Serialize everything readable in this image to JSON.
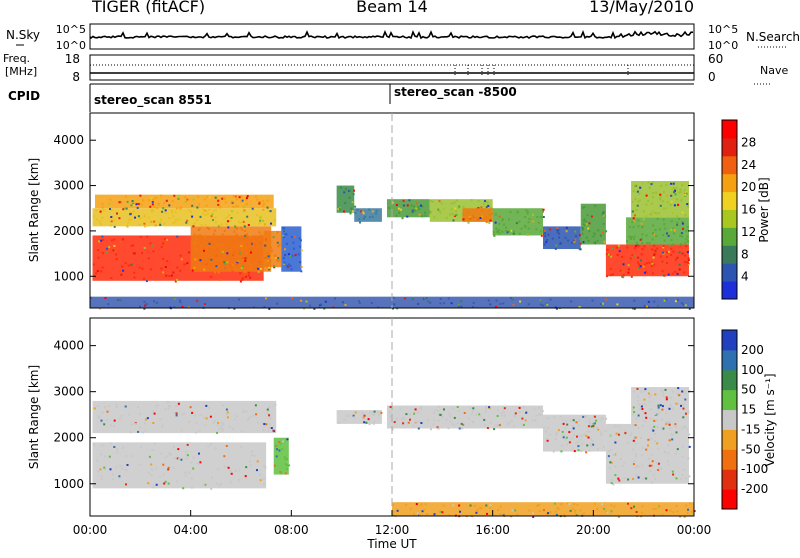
{
  "header": {
    "radar": "TIGER (fitACF)",
    "beam": "Beam 14",
    "date": "13/May/2010"
  },
  "sky_strip": {
    "left_label": "N.Sky",
    "left_ticks": [
      "10^5",
      "10^0"
    ],
    "right_ticks": [
      "10^5",
      "10^0"
    ],
    "right_label": "N.Search"
  },
  "freq_strip": {
    "left_label_1": "Freq.",
    "left_label_2": "[MHz]",
    "left_ticks": [
      "18",
      "8"
    ],
    "right_ticks": [
      "60",
      "0"
    ],
    "right_label": "Nave"
  },
  "cpid": {
    "label": "CPID",
    "segments": [
      {
        "name": "stereo_scan 8551",
        "start_hour": 0
      },
      {
        "name": "stereo_scan -8500",
        "start_hour": 12
      }
    ]
  },
  "chart_data": [
    {
      "type": "heatmap",
      "quantity": "power",
      "ylabel": "Slant Range [km]",
      "ylim": [
        300,
        4600
      ],
      "yticks": [
        1000,
        2000,
        3000,
        4000
      ],
      "xlim_hours": [
        0,
        24
      ],
      "colorbar_label": "Power [dB]",
      "colorbar_ticks": [
        "4",
        "8",
        "12",
        "16",
        "20",
        "24",
        "28"
      ],
      "colorbar_colors": [
        "#1d2fd8",
        "#2b55b0",
        "#3a7a5a",
        "#58a83a",
        "#a8c820",
        "#f0d020",
        "#f5a010",
        "#f06010",
        "#e02010",
        "#ff0000"
      ],
      "regions": [
        {
          "x0": 0.1,
          "x1": 6.9,
          "y0": 900,
          "y1": 1900,
          "c": "#ff2a0a"
        },
        {
          "x0": 4.0,
          "x1": 7.2,
          "y0": 1100,
          "y1": 2100,
          "c": "#f07a10"
        },
        {
          "x0": 0.1,
          "x1": 7.4,
          "y0": 2100,
          "y1": 2500,
          "c": "#e8c020"
        },
        {
          "x0": 0.2,
          "x1": 7.3,
          "y0": 2500,
          "y1": 2800,
          "c": "#f5a010"
        },
        {
          "x0": 6.9,
          "x1": 7.6,
          "y0": 1200,
          "y1": 2000,
          "c": "#f07a10"
        },
        {
          "x0": 7.6,
          "x1": 8.4,
          "y0": 1100,
          "y1": 2100,
          "c": "#2b5fd0"
        },
        {
          "x0": 9.8,
          "x1": 10.5,
          "y0": 2400,
          "y1": 3000,
          "c": "#3a8a4a"
        },
        {
          "x0": 10.5,
          "x1": 11.6,
          "y0": 2200,
          "y1": 2500,
          "c": "#3a7aa0"
        },
        {
          "x0": 11.8,
          "x1": 13.5,
          "y0": 2300,
          "y1": 2700,
          "c": "#4a9a3a"
        },
        {
          "x0": 13.5,
          "x1": 16.0,
          "y0": 2200,
          "y1": 2700,
          "c": "#9ac030"
        },
        {
          "x0": 14.8,
          "x1": 16.0,
          "y0": 2200,
          "y1": 2500,
          "c": "#f07a10"
        },
        {
          "x0": 16.0,
          "x1": 18.0,
          "y0": 1900,
          "y1": 2500,
          "c": "#58a83a"
        },
        {
          "x0": 18.0,
          "x1": 19.5,
          "y0": 1600,
          "y1": 2100,
          "c": "#2b55b0"
        },
        {
          "x0": 19.5,
          "x1": 20.5,
          "y0": 1700,
          "y1": 2600,
          "c": "#4a9a3a"
        },
        {
          "x0": 20.5,
          "x1": 23.8,
          "y0": 1000,
          "y1": 1700,
          "c": "#ff2a0a"
        },
        {
          "x0": 21.3,
          "x1": 23.8,
          "y0": 1700,
          "y1": 2300,
          "c": "#58a83a"
        },
        {
          "x0": 21.5,
          "x1": 23.8,
          "y0": 2300,
          "y1": 3100,
          "c": "#9ac030"
        },
        {
          "x0": 0.0,
          "x1": 24.0,
          "y0": 300,
          "y1": 550,
          "c": "#3a5ab0"
        }
      ]
    },
    {
      "type": "heatmap",
      "quantity": "velocity",
      "ylabel": "Slant Range [km]",
      "ylim": [
        300,
        4600
      ],
      "yticks": [
        1000,
        2000,
        3000,
        4000
      ],
      "xlim_hours": [
        0,
        24
      ],
      "xticks": [
        "00:00",
        "04:00",
        "08:00",
        "12:00",
        "16:00",
        "20:00",
        "00:00"
      ],
      "xlabel": "Time UT",
      "colorbar_label": "Velocity [m s⁻¹]",
      "colorbar_ticks": [
        "200",
        "100",
        "50",
        "15",
        "-15",
        "-50",
        "-100",
        "-200"
      ],
      "colorbar_colors": [
        "#2040c0",
        "#2f70b0",
        "#3a8a4a",
        "#60c040",
        "#c8c8c8",
        "#f0a020",
        "#f07010",
        "#e03010",
        "#ff0000"
      ],
      "regions": [
        {
          "x0": 0.1,
          "x1": 7.0,
          "y0": 900,
          "y1": 1900,
          "c": "#c8c8c8"
        },
        {
          "x0": 0.1,
          "x1": 7.4,
          "y0": 2100,
          "y1": 2800,
          "c": "#c8c8c8"
        },
        {
          "x0": 7.3,
          "x1": 7.9,
          "y0": 1200,
          "y1": 2000,
          "c": "#60c040"
        },
        {
          "x0": 9.8,
          "x1": 11.6,
          "y0": 2300,
          "y1": 2600,
          "c": "#c8c8c8"
        },
        {
          "x0": 11.8,
          "x1": 18.0,
          "y0": 2200,
          "y1": 2700,
          "c": "#c8c8c8"
        },
        {
          "x0": 18.0,
          "x1": 20.5,
          "y0": 1700,
          "y1": 2500,
          "c": "#c8c8c8"
        },
        {
          "x0": 20.5,
          "x1": 23.8,
          "y0": 1000,
          "y1": 2300,
          "c": "#c8c8c8"
        },
        {
          "x0": 21.5,
          "x1": 23.8,
          "y0": 2300,
          "y1": 3100,
          "c": "#c8c8c8"
        },
        {
          "x0": 12.0,
          "x1": 24.0,
          "y0": 300,
          "y1": 600,
          "c": "#f0a020"
        }
      ]
    }
  ],
  "colors": {
    "frame": "#000000",
    "dashed_marker": "#aaaaaa"
  }
}
